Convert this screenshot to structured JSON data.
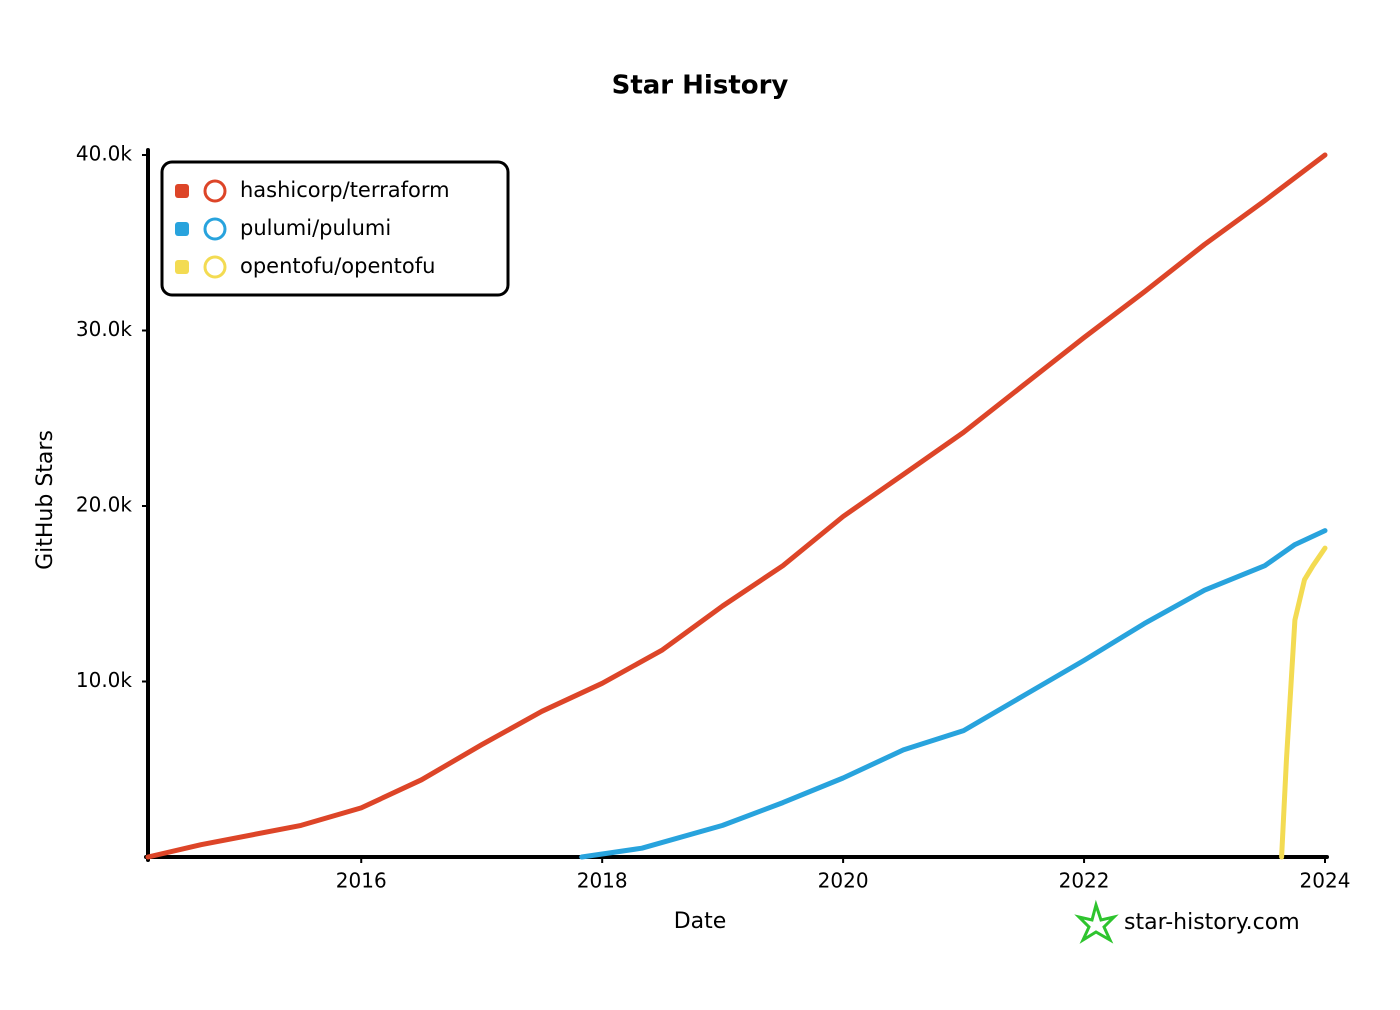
{
  "chart_data": {
    "type": "line",
    "title": "Star History",
    "x_label": "Date",
    "y_label": "GitHub Stars",
    "xlim": [
      2014.23,
      2024.0
    ],
    "xticks": [
      2016,
      2018,
      2020,
      2022,
      2024
    ],
    "ylim": [
      0,
      40000
    ],
    "yticks": [
      {
        "value": 10000,
        "label": "10.0k"
      },
      {
        "value": 20000,
        "label": "20.0k"
      },
      {
        "value": 30000,
        "label": "30.0k"
      },
      {
        "value": 40000,
        "label": "40.0k"
      }
    ],
    "grid": false,
    "legend": "upper left",
    "watermark": "star-history.com",
    "series": [
      {
        "name": "hashicorp/terraform",
        "color": "#dd4528",
        "x": [
          2014.23,
          2014.67,
          2015.5,
          2016.0,
          2016.5,
          2017.0,
          2017.5,
          2018.0,
          2018.5,
          2019.0,
          2019.5,
          2020.0,
          2020.5,
          2021.0,
          2021.5,
          2022.0,
          2022.5,
          2023.0,
          2023.5,
          2024.0
        ],
        "values": [
          0,
          700,
          1800,
          2800,
          4400,
          6400,
          8300,
          9900,
          11800,
          14300,
          16600,
          19400,
          21800,
          24200,
          26900,
          29600,
          32200,
          34900,
          37400,
          40000
        ]
      },
      {
        "name": "pulumi/pulumi",
        "color": "#28a3dd",
        "x": [
          2017.83,
          2018.33,
          2019.0,
          2019.5,
          2020.0,
          2020.5,
          2021.0,
          2021.5,
          2022.0,
          2022.5,
          2023.0,
          2023.5,
          2023.75,
          2024.0
        ],
        "values": [
          0,
          500,
          1800,
          3100,
          4500,
          6100,
          7200,
          9200,
          11200,
          13300,
          15200,
          16600,
          17800,
          18600
        ]
      },
      {
        "name": "opentofu/opentofu",
        "color": "#f3db52",
        "x": [
          2023.64,
          2023.68,
          2023.75,
          2023.83,
          2023.9,
          2024.0
        ],
        "values": [
          0,
          5500,
          13500,
          15800,
          16600,
          17600
        ]
      }
    ]
  }
}
